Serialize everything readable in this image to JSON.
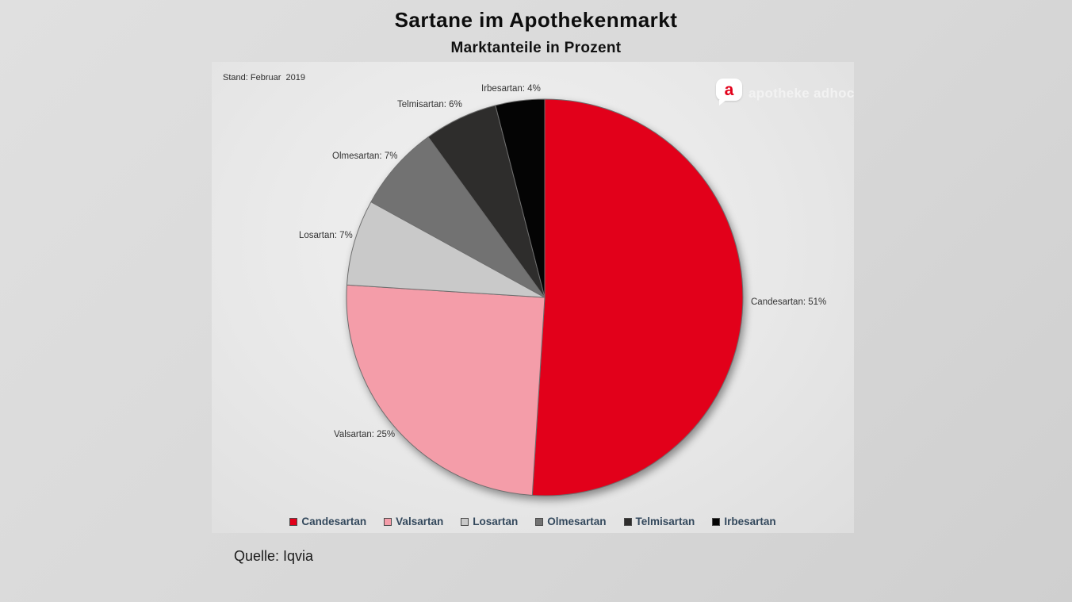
{
  "title": "Sartane im Apothekenmarkt",
  "subtitle": "Marktanteile in Prozent",
  "stand_note": "Stand: Februar  2019",
  "source": "Quelle: Iqvia",
  "logo": {
    "text": "apotheke adhoc",
    "bubble_letter": "a",
    "accent_color": "#e2001a"
  },
  "chart_data": {
    "type": "pie",
    "title": "Sartane im Apothekenmarkt",
    "subtitle": "Marktanteile in Prozent",
    "unit": "percent",
    "start_angle_deg": 0,
    "direction": "clockwise",
    "legend_position": "bottom",
    "slices": [
      {
        "name": "Candesartan",
        "value": 51,
        "color": "#e2001a",
        "label": "Candesartan: 51%"
      },
      {
        "name": "Valsartan",
        "value": 25,
        "color": "#f49da9",
        "label": "Valsartan: 25%"
      },
      {
        "name": "Losartan",
        "value": 7,
        "color": "#c9c9c9",
        "label": "Losartan: 7%"
      },
      {
        "name": "Olmesartan",
        "value": 7,
        "color": "#727272",
        "label": "Olmesartan: 7%"
      },
      {
        "name": "Telmisartan",
        "value": 6,
        "color": "#2e2d2c",
        "label": "Telmisartan: 6%"
      },
      {
        "name": "Irbesartan",
        "value": 4,
        "color": "#040404",
        "label": "Irbesartan: 4%"
      }
    ]
  }
}
